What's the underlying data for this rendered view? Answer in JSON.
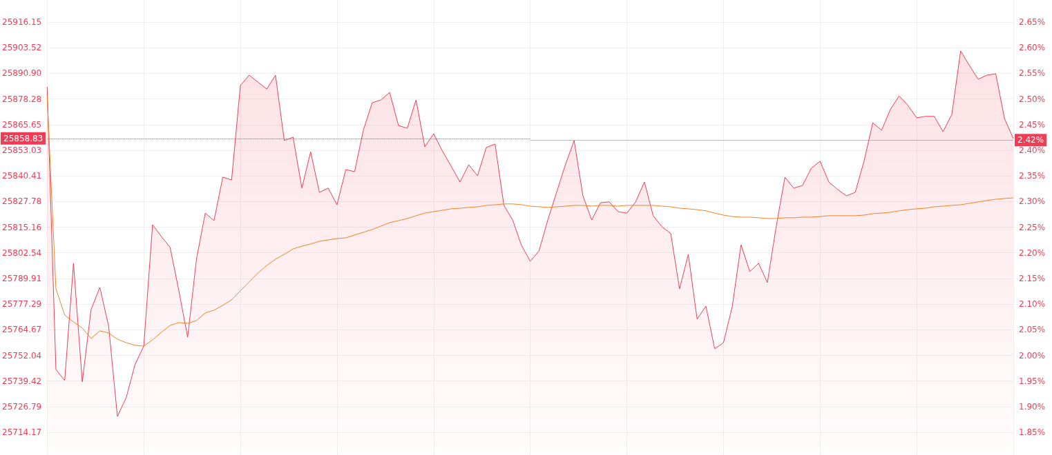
{
  "chart_data": {
    "type": "area",
    "categories": [
      null,
      null,
      null,
      null,
      null,
      null,
      null,
      null,
      null,
      null,
      null,
      null,
      null,
      null,
      null,
      null,
      null,
      null,
      null,
      null,
      null,
      null,
      null,
      null,
      null,
      null,
      null,
      null,
      null,
      null,
      null,
      null,
      null,
      null,
      null,
      null,
      null,
      null,
      null,
      null,
      null,
      null,
      null,
      null,
      null,
      null,
      null,
      null,
      null,
      null,
      null,
      null,
      null,
      null,
      null,
      null,
      null,
      null,
      null,
      null,
      null,
      null,
      null,
      null,
      null,
      null,
      null,
      null,
      null,
      null,
      null,
      null,
      null,
      null,
      null,
      null,
      null,
      null,
      null,
      null,
      null,
      null,
      null,
      null,
      null,
      null,
      null,
      null,
      null,
      null,
      null,
      null,
      null,
      null,
      null,
      null,
      null,
      null,
      null,
      null,
      null,
      null,
      null,
      null,
      null,
      null,
      null,
      null,
      null,
      null,
      null
    ],
    "series": [
      {
        "color": "#f03c55",
        "values": [
          25884.2,
          25745.1,
          25739.7,
          25797.4,
          25739.0,
          25774.6,
          25785.5,
          25766.5,
          25722.0,
          25731.2,
          25747.5,
          25756.6,
          25816.4,
          25810.6,
          25805.2,
          25783.8,
          25761.0,
          25799.4,
          25822.1,
          25818.4,
          25839.8,
          25838.4,
          25884.9,
          25890.0,
          25886.6,
          25883.2,
          25890.0,
          25857.8,
          25859.5,
          25834.4,
          25852.3,
          25832.3,
          25834.4,
          25826.2,
          25843.5,
          25842.5,
          25862.9,
          25876.4,
          25877.8,
          25881.5,
          25865.2,
          25863.9,
          25877.8,
          25854.7,
          25861.2,
          25852.7,
          25845.2,
          25837.4,
          25845.9,
          25840.5,
          25854.4,
          25856.1,
          25825.9,
          25818.7,
          25806.2,
          25798.4,
          25803.5,
          25818.7,
          25832.3,
          25845.9,
          25857.8,
          25830.6,
          25818.7,
          25827.2,
          25827.6,
          25822.8,
          25822.1,
          25827.6,
          25837.4,
          25820.8,
          25815.4,
          25812.0,
          25784.8,
          25801.8,
          25769.9,
          25776.3,
          25755.3,
          25758.3,
          25776.0,
          25806.5,
          25793.3,
          25797.4,
          25787.9,
          25815.4,
          25839.8,
          25834.4,
          25835.7,
          25844.2,
          25847.6,
          25837.4,
          25833.7,
          25830.6,
          25832.3,
          25847.6,
          25866.6,
          25862.9,
          25873.1,
          25879.8,
          25875.1,
          25869.0,
          25869.7,
          25869.7,
          25862.2,
          25870.7,
          25901.9,
          25894.8,
          25888.0,
          25890.0,
          25890.7,
          25868.6,
          25858.8
        ]
      },
      {
        "type": "line",
        "color": "#f5821f",
        "values": [
          25879.8,
          25784.8,
          25771.9,
          25768.5,
          25765.5,
          25760.4,
          25764.1,
          25763.1,
          25760.0,
          25758.3,
          25757.0,
          25756.6,
          25759.7,
          25763.4,
          25766.8,
          25768.2,
          25767.8,
          25769.2,
          25772.9,
          25774.3,
          25776.7,
          25779.4,
          25783.8,
          25788.2,
          25792.6,
          25796.3,
          25799.4,
          25801.8,
          25804.5,
          25805.8,
          25806.9,
          25808.2,
          25808.9,
          25809.6,
          25809.9,
          25811.3,
          25812.6,
          25814.0,
          25815.7,
          25817.4,
          25818.4,
          25819.4,
          25820.8,
          25822.1,
          25822.8,
          25823.5,
          25824.2,
          25824.5,
          25824.9,
          25825.2,
          25825.9,
          25826.2,
          25826.6,
          25826.6,
          25826.2,
          25825.5,
          25825.2,
          25824.9,
          25825.2,
          25825.5,
          25825.9,
          25825.9,
          25825.5,
          25825.9,
          25825.9,
          25825.5,
          25825.9,
          25825.9,
          25825.9,
          25825.9,
          25825.5,
          25825.2,
          25824.5,
          25824.2,
          25823.8,
          25823.2,
          25822.1,
          25821.1,
          25820.4,
          25820.1,
          25820.1,
          25819.8,
          25819.4,
          25819.4,
          25819.8,
          25819.8,
          25820.1,
          25820.1,
          25820.4,
          25820.8,
          25820.8,
          25820.8,
          25820.8,
          25821.1,
          25821.8,
          25822.1,
          25822.5,
          25823.2,
          25823.8,
          25824.2,
          25824.5,
          25825.2,
          25825.5,
          25825.9,
          25826.2,
          25826.9,
          25827.6,
          25828.3,
          25828.9,
          25829.3,
          25829.6
        ]
      }
    ],
    "ylim": [
      25703,
      25927
    ],
    "yticks": [
      {
        "value": 25916.15,
        "label": "25916.15"
      },
      {
        "value": 25903.52,
        "label": "25903.52"
      },
      {
        "value": 25890.9,
        "label": "25890.90"
      },
      {
        "value": 25878.28,
        "label": "25878.28"
      },
      {
        "value": 25865.65,
        "label": "25865.65"
      },
      {
        "value": 25853.03,
        "label": "25853.03"
      },
      {
        "value": 25840.41,
        "label": "25840.41"
      },
      {
        "value": 25827.78,
        "label": "25827.78"
      },
      {
        "value": 25815.16,
        "label": "25815.16"
      },
      {
        "value": 25802.54,
        "label": "25802.54"
      },
      {
        "value": 25789.91,
        "label": "25789.91"
      },
      {
        "value": 25777.29,
        "label": "25777.29"
      },
      {
        "value": 25764.67,
        "label": "25764.67"
      },
      {
        "value": 25752.04,
        "label": "25752.04"
      },
      {
        "value": 25739.42,
        "label": "25739.42"
      },
      {
        "value": 25726.79,
        "label": "25726.79"
      },
      {
        "value": 25714.17,
        "label": "25714.17"
      }
    ],
    "y2lim": [
      1.806,
      2.693
    ],
    "y2ticks": [
      {
        "value": 2.65,
        "label": "2.65%"
      },
      {
        "value": 2.6,
        "label": "2.60%"
      },
      {
        "value": 2.55,
        "label": "2.55%"
      },
      {
        "value": 2.5,
        "label": "2.50%"
      },
      {
        "value": 2.45,
        "label": "2.45%"
      },
      {
        "value": 2.4,
        "label": "2.40%"
      },
      {
        "value": 2.35,
        "label": "2.35%"
      },
      {
        "value": 2.3,
        "label": "2.30%"
      },
      {
        "value": 2.25,
        "label": "2.25%"
      },
      {
        "value": 2.2,
        "label": "2.20%"
      },
      {
        "value": 2.15,
        "label": "2.15%"
      },
      {
        "value": 2.1,
        "label": "2.10%"
      },
      {
        "value": 2.05,
        "label": "2.05%"
      },
      {
        "value": 2.0,
        "label": "2.00%"
      },
      {
        "value": 1.95,
        "label": "1.95%"
      },
      {
        "value": 1.9,
        "label": "1.90%"
      },
      {
        "value": 1.85,
        "label": "1.85%"
      }
    ],
    "ref_lines": [
      {
        "axis": "y",
        "value": 25858.83,
        "label": "25858.83",
        "color": "#f03c55",
        "line_style": "dotted"
      },
      {
        "axis": "y2",
        "value": 2.42,
        "label": "2.42%",
        "color": "#f03c55",
        "line_style": "dotted"
      }
    ],
    "grid": true,
    "tick_labels": "y",
    "marker": "none"
  }
}
